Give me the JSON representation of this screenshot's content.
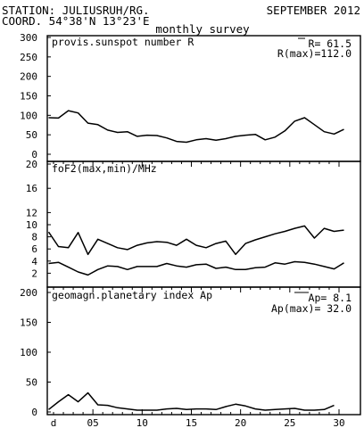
{
  "header": {
    "station": "STATION: JULIUSRUH/RG.",
    "coord": "COORD. 54°38'N 13°23'E",
    "month": "SEPTEMBER 2012",
    "subtitle": "monthly survey"
  },
  "chart_data": [
    {
      "type": "line",
      "title": "provis.sunspot number R",
      "annotations": [
        "R= 61.5",
        "R(max)=112.0"
      ],
      "ylim": [
        0,
        300
      ],
      "yticks": [
        0,
        50,
        100,
        150,
        200,
        250,
        300
      ],
      "xlim": [
        1,
        30
      ],
      "series": [
        {
          "values": [
            94,
            93,
            112,
            106,
            80,
            76,
            62,
            56,
            58,
            46,
            49,
            48,
            42,
            33,
            31,
            37,
            40,
            36,
            40,
            46,
            49,
            51,
            37,
            44,
            60,
            85,
            94,
            76,
            58,
            52,
            64
          ]
        }
      ]
    },
    {
      "type": "line",
      "title": "foF2(max,min)/MHz",
      "ylim": [
        0,
        20
      ],
      "yticks": [
        2,
        4,
        6,
        8,
        10,
        12,
        16,
        20
      ],
      "xlim": [
        1,
        30
      ],
      "series": [
        {
          "values": [
            8.8,
            6.4,
            6.2,
            8.7,
            5.1,
            7.6,
            6.9,
            6.2,
            5.9,
            6.6,
            7.0,
            7.2,
            7.1,
            6.6,
            7.6,
            6.6,
            6.2,
            6.9,
            7.3,
            5.1,
            6.9,
            7.5,
            8.0,
            8.5,
            8.9,
            9.4,
            9.8,
            7.8,
            9.4,
            8.9,
            9.1
          ]
        },
        {
          "values": [
            3.6,
            3.8,
            3.0,
            2.2,
            1.7,
            2.6,
            3.2,
            3.1,
            2.6,
            3.1,
            3.1,
            3.1,
            3.6,
            3.2,
            3.0,
            3.4,
            3.5,
            2.8,
            3.0,
            2.6,
            2.6,
            2.9,
            3.0,
            3.7,
            3.5,
            3.9,
            3.8,
            3.5,
            3.1,
            2.7,
            3.7
          ]
        }
      ]
    },
    {
      "type": "line",
      "title": "geomagn.planetary index Ap",
      "annotations": [
        "Ap=  8.1",
        "Ap(max)= 32.0"
      ],
      "ylim": [
        0,
        200
      ],
      "yticks": [
        0,
        50,
        100,
        150,
        200
      ],
      "xlim": [
        1,
        30
      ],
      "series": [
        {
          "values": [
            4,
            17,
            29,
            17,
            32,
            12,
            11,
            7,
            5,
            3,
            3,
            3,
            5,
            6,
            4,
            5,
            5,
            4,
            9,
            13,
            10,
            5,
            3,
            4,
            5,
            6,
            3,
            3,
            4,
            11,
            null
          ]
        }
      ]
    }
  ],
  "x_axis": {
    "tick_labels": [
      "d",
      "05",
      "10",
      "15",
      "20",
      "25",
      "30"
    ]
  }
}
